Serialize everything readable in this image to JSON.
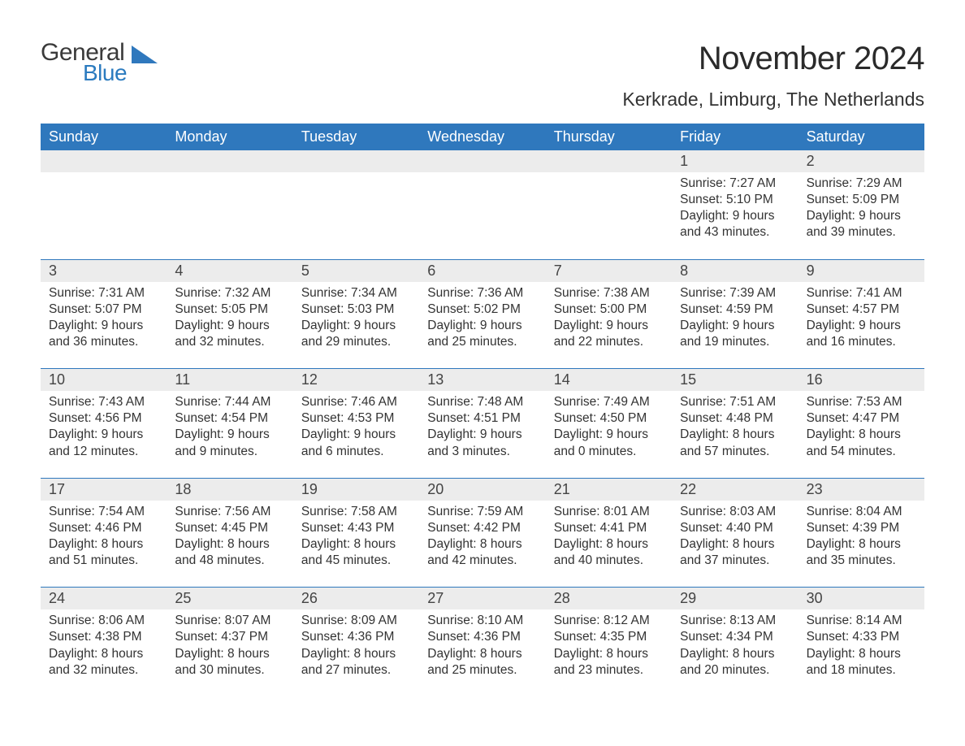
{
  "brand": {
    "general": "General",
    "blue": "Blue",
    "accent_color": "#2f78bd"
  },
  "header": {
    "title": "November 2024",
    "location": "Kerkrade, Limburg, The Netherlands"
  },
  "colors": {
    "header_bg": "#2f78bd",
    "header_text": "#ffffff",
    "strip_bg": "#ececec",
    "border": "#2f78bd",
    "text": "#333333",
    "background": "#ffffff"
  },
  "daysOfWeek": [
    "Sunday",
    "Monday",
    "Tuesday",
    "Wednesday",
    "Thursday",
    "Friday",
    "Saturday"
  ],
  "weeks": [
    [
      null,
      null,
      null,
      null,
      null,
      {
        "n": "1",
        "sunrise": "7:27 AM",
        "sunset": "5:10 PM",
        "dl1": "Daylight: 9 hours",
        "dl2": "and 43 minutes."
      },
      {
        "n": "2",
        "sunrise": "7:29 AM",
        "sunset": "5:09 PM",
        "dl1": "Daylight: 9 hours",
        "dl2": "and 39 minutes."
      }
    ],
    [
      {
        "n": "3",
        "sunrise": "7:31 AM",
        "sunset": "5:07 PM",
        "dl1": "Daylight: 9 hours",
        "dl2": "and 36 minutes."
      },
      {
        "n": "4",
        "sunrise": "7:32 AM",
        "sunset": "5:05 PM",
        "dl1": "Daylight: 9 hours",
        "dl2": "and 32 minutes."
      },
      {
        "n": "5",
        "sunrise": "7:34 AM",
        "sunset": "5:03 PM",
        "dl1": "Daylight: 9 hours",
        "dl2": "and 29 minutes."
      },
      {
        "n": "6",
        "sunrise": "7:36 AM",
        "sunset": "5:02 PM",
        "dl1": "Daylight: 9 hours",
        "dl2": "and 25 minutes."
      },
      {
        "n": "7",
        "sunrise": "7:38 AM",
        "sunset": "5:00 PM",
        "dl1": "Daylight: 9 hours",
        "dl2": "and 22 minutes."
      },
      {
        "n": "8",
        "sunrise": "7:39 AM",
        "sunset": "4:59 PM",
        "dl1": "Daylight: 9 hours",
        "dl2": "and 19 minutes."
      },
      {
        "n": "9",
        "sunrise": "7:41 AM",
        "sunset": "4:57 PM",
        "dl1": "Daylight: 9 hours",
        "dl2": "and 16 minutes."
      }
    ],
    [
      {
        "n": "10",
        "sunrise": "7:43 AM",
        "sunset": "4:56 PM",
        "dl1": "Daylight: 9 hours",
        "dl2": "and 12 minutes."
      },
      {
        "n": "11",
        "sunrise": "7:44 AM",
        "sunset": "4:54 PM",
        "dl1": "Daylight: 9 hours",
        "dl2": "and 9 minutes."
      },
      {
        "n": "12",
        "sunrise": "7:46 AM",
        "sunset": "4:53 PM",
        "dl1": "Daylight: 9 hours",
        "dl2": "and 6 minutes."
      },
      {
        "n": "13",
        "sunrise": "7:48 AM",
        "sunset": "4:51 PM",
        "dl1": "Daylight: 9 hours",
        "dl2": "and 3 minutes."
      },
      {
        "n": "14",
        "sunrise": "7:49 AM",
        "sunset": "4:50 PM",
        "dl1": "Daylight: 9 hours",
        "dl2": "and 0 minutes."
      },
      {
        "n": "15",
        "sunrise": "7:51 AM",
        "sunset": "4:48 PM",
        "dl1": "Daylight: 8 hours",
        "dl2": "and 57 minutes."
      },
      {
        "n": "16",
        "sunrise": "7:53 AM",
        "sunset": "4:47 PM",
        "dl1": "Daylight: 8 hours",
        "dl2": "and 54 minutes."
      }
    ],
    [
      {
        "n": "17",
        "sunrise": "7:54 AM",
        "sunset": "4:46 PM",
        "dl1": "Daylight: 8 hours",
        "dl2": "and 51 minutes."
      },
      {
        "n": "18",
        "sunrise": "7:56 AM",
        "sunset": "4:45 PM",
        "dl1": "Daylight: 8 hours",
        "dl2": "and 48 minutes."
      },
      {
        "n": "19",
        "sunrise": "7:58 AM",
        "sunset": "4:43 PM",
        "dl1": "Daylight: 8 hours",
        "dl2": "and 45 minutes."
      },
      {
        "n": "20",
        "sunrise": "7:59 AM",
        "sunset": "4:42 PM",
        "dl1": "Daylight: 8 hours",
        "dl2": "and 42 minutes."
      },
      {
        "n": "21",
        "sunrise": "8:01 AM",
        "sunset": "4:41 PM",
        "dl1": "Daylight: 8 hours",
        "dl2": "and 40 minutes."
      },
      {
        "n": "22",
        "sunrise": "8:03 AM",
        "sunset": "4:40 PM",
        "dl1": "Daylight: 8 hours",
        "dl2": "and 37 minutes."
      },
      {
        "n": "23",
        "sunrise": "8:04 AM",
        "sunset": "4:39 PM",
        "dl1": "Daylight: 8 hours",
        "dl2": "and 35 minutes."
      }
    ],
    [
      {
        "n": "24",
        "sunrise": "8:06 AM",
        "sunset": "4:38 PM",
        "dl1": "Daylight: 8 hours",
        "dl2": "and 32 minutes."
      },
      {
        "n": "25",
        "sunrise": "8:07 AM",
        "sunset": "4:37 PM",
        "dl1": "Daylight: 8 hours",
        "dl2": "and 30 minutes."
      },
      {
        "n": "26",
        "sunrise": "8:09 AM",
        "sunset": "4:36 PM",
        "dl1": "Daylight: 8 hours",
        "dl2": "and 27 minutes."
      },
      {
        "n": "27",
        "sunrise": "8:10 AM",
        "sunset": "4:36 PM",
        "dl1": "Daylight: 8 hours",
        "dl2": "and 25 minutes."
      },
      {
        "n": "28",
        "sunrise": "8:12 AM",
        "sunset": "4:35 PM",
        "dl1": "Daylight: 8 hours",
        "dl2": "and 23 minutes."
      },
      {
        "n": "29",
        "sunrise": "8:13 AM",
        "sunset": "4:34 PM",
        "dl1": "Daylight: 8 hours",
        "dl2": "and 20 minutes."
      },
      {
        "n": "30",
        "sunrise": "8:14 AM",
        "sunset": "4:33 PM",
        "dl1": "Daylight: 8 hours",
        "dl2": "and 18 minutes."
      }
    ]
  ],
  "labels": {
    "sunrise": "Sunrise: ",
    "sunset": "Sunset: "
  }
}
